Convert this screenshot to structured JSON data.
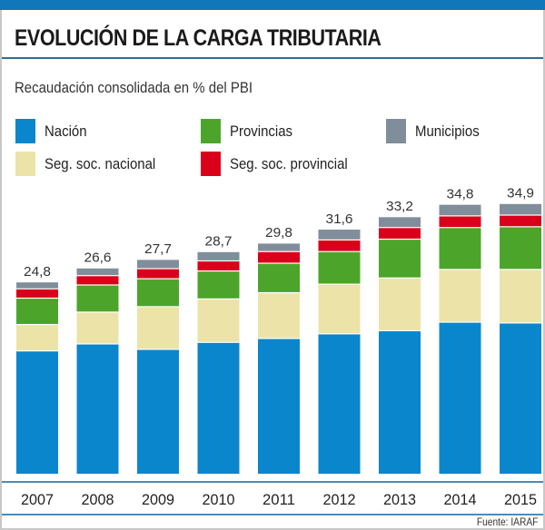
{
  "title": "EVOLUCIÓN DE LA CARGA TRIBUTARIA",
  "subtitle": "Recaudación consolidada en % del PBI",
  "source": "Fuente: IARAF",
  "colors": {
    "topbar": "#1177bb",
    "nacion": "#0a86cc",
    "seg_soc_nacional": "#ece3a8",
    "provincias": "#4ca52a",
    "seg_soc_provincial": "#d9001b",
    "municipios": "#7f8e9a"
  },
  "legend": [
    {
      "key": "nacion",
      "label": "Nación"
    },
    {
      "key": "provincias",
      "label": "Provincias"
    },
    {
      "key": "municipios",
      "label": "Municipios"
    },
    {
      "key": "seg_soc_nacional",
      "label": "Seg. soc. nacional"
    },
    {
      "key": "seg_soc_provincial",
      "label": "Seg. soc. provincial"
    }
  ],
  "chart_data": {
    "type": "bar",
    "stacked": true,
    "title": "EVOLUCIÓN DE LA CARGA TRIBUTARIA",
    "subtitle": "Recaudación consolidada en % del PBI",
    "xlabel": "",
    "ylabel": "% del PBI",
    "ylim": [
      0,
      36
    ],
    "grid": false,
    "legend_position": "top",
    "categories": [
      "2007",
      "2008",
      "2009",
      "2010",
      "2011",
      "2012",
      "2013",
      "2014",
      "2015"
    ],
    "totals": [
      "24,8",
      "26,6",
      "27,7",
      "28,7",
      "29,8",
      "31,6",
      "33,2",
      "34,8",
      "34,9"
    ],
    "series": [
      {
        "key": "nacion",
        "name": "Nación",
        "values": [
          15.9,
          16.8,
          16.1,
          17.0,
          17.5,
          18.1,
          18.5,
          19.6,
          19.5
        ]
      },
      {
        "key": "seg_soc_nacional",
        "name": "Seg. soc. nacional",
        "values": [
          3.4,
          4.1,
          5.5,
          5.6,
          5.9,
          6.4,
          6.8,
          6.8,
          6.9
        ]
      },
      {
        "key": "provincias",
        "name": "Provincias",
        "values": [
          3.4,
          3.5,
          3.6,
          3.6,
          3.8,
          4.2,
          5.0,
          5.4,
          5.5
        ]
      },
      {
        "key": "seg_soc_provincial",
        "name": "Seg. soc. provincial",
        "values": [
          1.2,
          1.2,
          1.3,
          1.3,
          1.5,
          1.5,
          1.5,
          1.5,
          1.5
        ]
      },
      {
        "key": "municipios",
        "name": "Municipios",
        "values": [
          0.9,
          1.0,
          1.2,
          1.2,
          1.1,
          1.4,
          1.4,
          1.5,
          1.5
        ]
      }
    ]
  }
}
